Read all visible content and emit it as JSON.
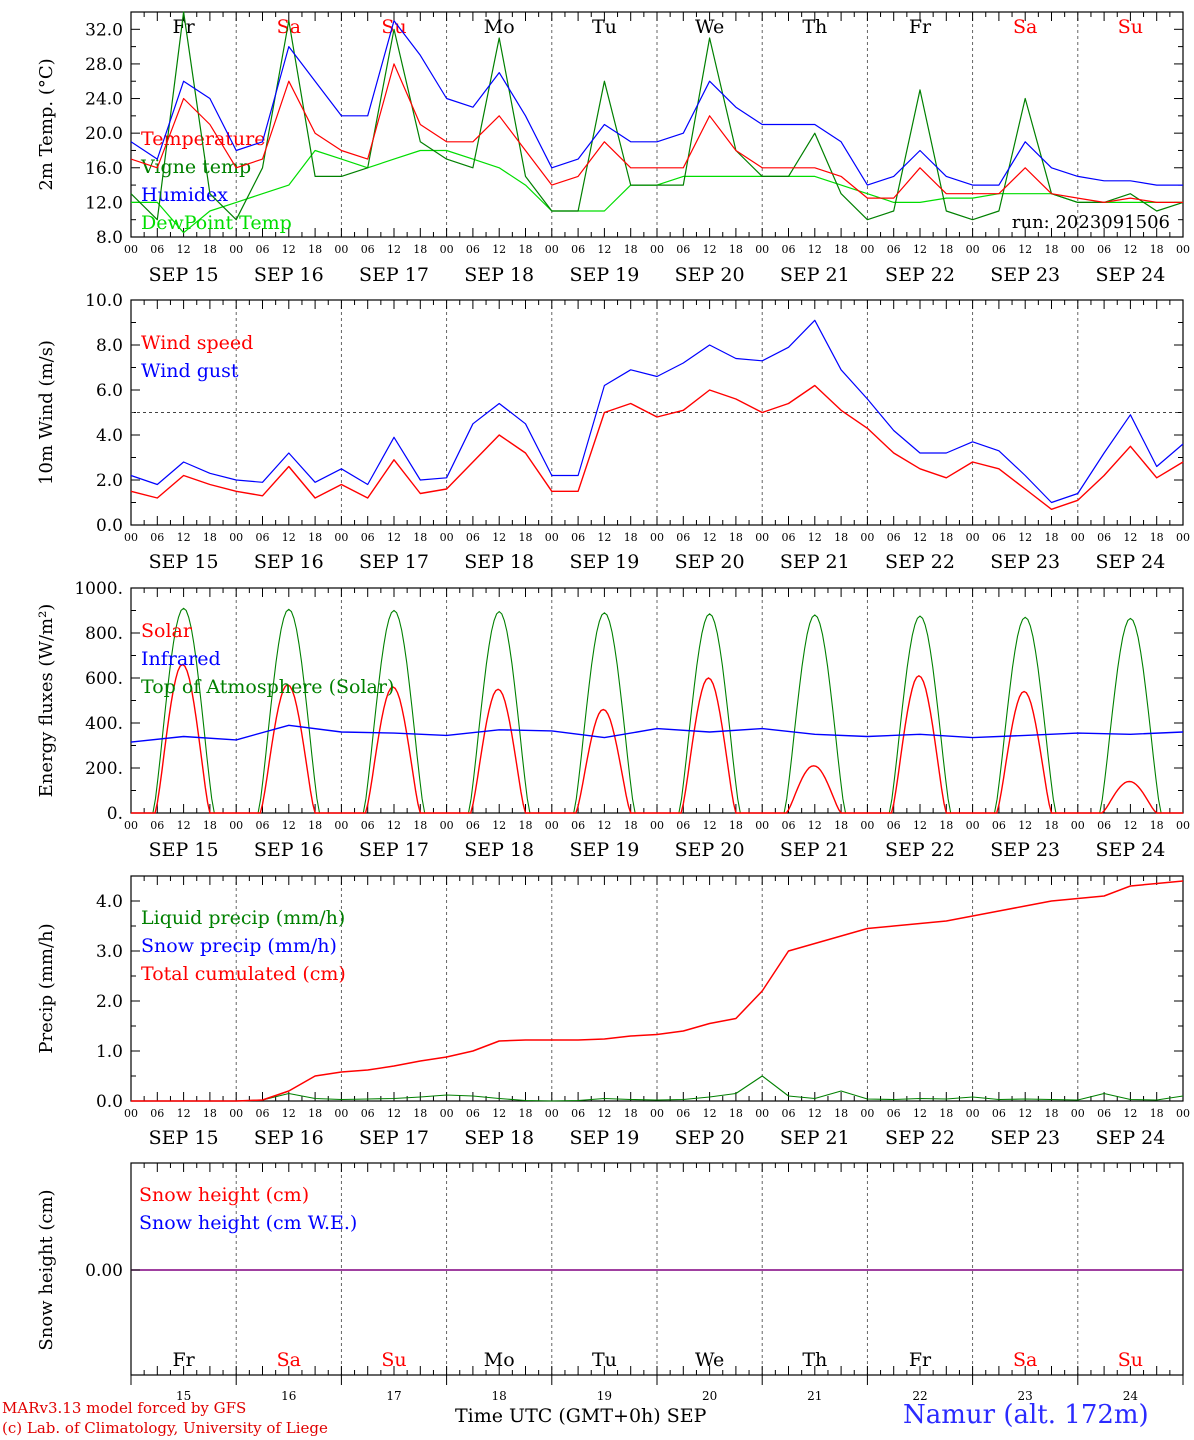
{
  "colors": {
    "temperature": "#ff0000",
    "vigne": "#008000",
    "humidex": "#0000ff",
    "dewpoint": "#00dd00",
    "weekday": "#000000",
    "weekend": "#ff0000",
    "snow_line": "#800080"
  },
  "days": {
    "dates": [
      "SEP 15",
      "SEP 16",
      "SEP 17",
      "SEP 18",
      "SEP 19",
      "SEP 20",
      "SEP 21",
      "SEP 22",
      "SEP 23",
      "SEP 24"
    ],
    "weekdays": [
      "Fr",
      "Sa",
      "Su",
      "Mo",
      "Tu",
      "We",
      "Th",
      "Fr",
      "Sa",
      "Su"
    ],
    "weekend": [
      false,
      true,
      true,
      false,
      false,
      false,
      false,
      false,
      true,
      true
    ],
    "day_numbers": [
      "15",
      "16",
      "17",
      "18",
      "19",
      "20",
      "21",
      "22",
      "23",
      "24"
    ],
    "hour_ticks": [
      "00",
      "06",
      "12",
      "18"
    ],
    "end_tick": "00"
  },
  "chart_data": [
    {
      "type": "line",
      "ylabel": "2m Temp. (°C)",
      "ylim": [
        8,
        34
      ],
      "yticks": [
        "8.0",
        "12.0",
        "16.0",
        "20.0",
        "24.0",
        "28.0",
        "32.0"
      ],
      "annotation": "run: 2023091506",
      "legend": [
        "Temperature",
        "Vigne temp",
        "Humidex",
        "DewPoint Temp"
      ],
      "x_hours": [
        0,
        6,
        12,
        18,
        24,
        30,
        36,
        42,
        48,
        54,
        60,
        66,
        72,
        78,
        84,
        90,
        96,
        102,
        108,
        114,
        120,
        126,
        132,
        138,
        144,
        150,
        156,
        162,
        168,
        174,
        180,
        186,
        192,
        198,
        204,
        210,
        216,
        222,
        228,
        234,
        240
      ],
      "series": [
        {
          "name": "Temperature",
          "values": [
            17,
            16,
            24,
            21,
            16,
            17,
            26,
            20,
            18,
            17,
            28,
            21,
            19,
            19,
            22,
            18,
            14,
            15,
            19,
            16,
            16,
            16,
            22,
            18,
            16,
            16,
            16,
            15,
            12.5,
            12.5,
            16,
            13,
            13,
            13,
            16,
            13,
            12.5,
            12,
            12.5,
            12,
            12
          ]
        },
        {
          "name": "Vigne temp",
          "values": [
            13,
            10,
            34,
            13,
            10,
            16,
            33,
            15,
            15,
            16,
            32,
            19,
            17,
            16,
            31,
            15,
            11,
            11,
            26,
            14,
            14,
            14,
            31,
            18,
            15,
            15,
            20,
            13,
            10,
            11,
            25,
            11,
            10,
            11,
            24,
            13,
            12,
            12,
            13,
            11,
            12
          ]
        },
        {
          "name": "Humidex",
          "values": [
            19,
            17,
            26,
            24,
            18,
            19,
            30,
            26,
            22,
            22,
            33,
            29,
            24,
            23,
            27,
            22,
            16,
            17,
            21,
            19,
            19,
            20,
            26,
            23,
            21,
            21,
            21,
            19,
            14,
            15,
            18,
            15,
            14,
            14,
            19,
            16,
            15,
            14.5,
            14.5,
            14,
            14
          ]
        },
        {
          "name": "DewPoint Temp",
          "values": [
            12,
            12,
            8.5,
            11,
            12,
            13,
            14,
            18,
            17,
            16,
            17,
            18,
            18,
            17,
            16,
            14,
            11,
            11,
            11,
            14,
            14,
            15,
            15,
            15,
            15,
            15,
            15,
            14,
            13,
            12,
            12,
            12.5,
            12.5,
            13,
            13,
            13,
            12,
            12,
            12,
            12,
            12
          ]
        }
      ]
    },
    {
      "type": "line",
      "ylabel": "10m Wind (m/s)",
      "ylim": [
        0,
        10
      ],
      "yticks": [
        "0.0",
        "2.0",
        "4.0",
        "6.0",
        "8.0",
        "10.0"
      ],
      "reference_line": 5,
      "legend": [
        "Wind speed",
        "Wind gust"
      ],
      "x_hours": [
        0,
        6,
        12,
        18,
        24,
        30,
        36,
        42,
        48,
        54,
        60,
        66,
        72,
        78,
        84,
        90,
        96,
        102,
        108,
        114,
        120,
        126,
        132,
        138,
        144,
        150,
        156,
        162,
        168,
        174,
        180,
        186,
        192,
        198,
        204,
        210,
        216,
        222,
        228,
        234,
        240
      ],
      "series": [
        {
          "name": "Wind speed",
          "values": [
            1.5,
            1.2,
            2.2,
            1.8,
            1.5,
            1.3,
            2.6,
            1.2,
            1.8,
            1.2,
            2.9,
            1.4,
            1.6,
            2.8,
            4.0,
            3.2,
            1.5,
            1.5,
            5.0,
            5.4,
            4.8,
            5.1,
            6.0,
            5.6,
            5.0,
            5.4,
            6.2,
            5.1,
            4.3,
            3.2,
            2.5,
            2.1,
            2.8,
            2.5,
            1.6,
            0.7,
            1.1,
            2.2,
            3.5,
            2.1,
            2.8
          ]
        },
        {
          "name": "Wind gust",
          "values": [
            2.2,
            1.8,
            2.8,
            2.3,
            2.0,
            1.9,
            3.2,
            1.9,
            2.5,
            1.8,
            3.9,
            2.0,
            2.1,
            4.5,
            5.4,
            4.5,
            2.2,
            2.2,
            6.2,
            6.9,
            6.6,
            7.2,
            8.0,
            7.4,
            7.3,
            7.9,
            9.1,
            6.9,
            5.6,
            4.2,
            3.2,
            3.2,
            3.7,
            3.3,
            2.2,
            1.0,
            1.4,
            3.2,
            4.9,
            2.6,
            3.6
          ]
        }
      ]
    },
    {
      "type": "line",
      "ylabel": "Energy fluxes (W/m²)",
      "ylim": [
        0,
        1000
      ],
      "yticks": [
        "0.",
        "200.",
        "400.",
        "600.",
        "800.",
        "1000."
      ],
      "legend": [
        "Solar",
        "Infrared",
        "Top of Atmosphere (Solar)"
      ],
      "solar_daily_peaks": [
        660,
        570,
        560,
        550,
        460,
        600,
        210,
        610,
        540,
        140
      ],
      "toa_daily_peaks": [
        910,
        905,
        900,
        895,
        890,
        885,
        880,
        875,
        870,
        865
      ],
      "infrared_values": [
        315,
        340,
        325,
        390,
        360,
        355,
        345,
        370,
        365,
        335,
        375,
        360,
        375,
        350,
        340,
        350,
        335,
        345,
        355,
        350,
        360
      ],
      "series": [
        {
          "name": "Solar",
          "peaks": [
            660,
            570,
            560,
            550,
            460,
            600,
            210,
            610,
            540,
            140
          ]
        },
        {
          "name": "Infrared",
          "values": [
            315,
            340,
            325,
            390,
            360,
            355,
            345,
            370,
            365,
            335,
            375,
            360,
            375,
            350,
            340,
            350,
            335,
            345,
            355,
            350,
            360
          ]
        },
        {
          "name": "Top of Atmosphere (Solar)",
          "peaks": [
            910,
            905,
            900,
            895,
            890,
            885,
            880,
            875,
            870,
            865
          ]
        }
      ]
    },
    {
      "type": "line",
      "ylabel": "Precip (mm/h)",
      "ylim": [
        0,
        4.5
      ],
      "yticks": [
        "0.0",
        "1.0",
        "2.0",
        "3.0",
        "4.0"
      ],
      "legend": [
        "Liquid precip (mm/h)",
        "Snow precip (mm/h)",
        "Total cumulated (cm)"
      ],
      "x_hours": [
        0,
        24,
        30,
        36,
        42,
        48,
        54,
        60,
        66,
        72,
        78,
        84,
        90,
        96,
        102,
        108,
        114,
        120,
        126,
        132,
        138,
        144,
        150,
        156,
        162,
        168,
        174,
        180,
        186,
        192,
        198,
        204,
        210,
        216,
        222,
        228,
        234,
        240
      ],
      "series": [
        {
          "name": "Total cumulated (cm)",
          "values": [
            0,
            0,
            0.02,
            0.2,
            0.5,
            0.58,
            0.62,
            0.7,
            0.8,
            0.88,
            1.0,
            1.2,
            1.22,
            1.22,
            1.22,
            1.24,
            1.3,
            1.33,
            1.4,
            1.55,
            1.65,
            2.2,
            3.0,
            3.15,
            3.3,
            3.45,
            3.5,
            3.55,
            3.6,
            3.7,
            3.8,
            3.9,
            4.0,
            4.05,
            4.1,
            4.3,
            4.35,
            4.4
          ]
        },
        {
          "name": "Liquid precip (mm/h)",
          "values": [
            0,
            0,
            0.02,
            0.15,
            0.05,
            0.03,
            0.04,
            0.05,
            0.08,
            0.12,
            0.1,
            0.05,
            0.01,
            0.0,
            0.01,
            0.05,
            0.03,
            0.02,
            0.03,
            0.08,
            0.15,
            0.5,
            0.1,
            0.05,
            0.2,
            0.04,
            0.03,
            0.05,
            0.04,
            0.08,
            0.03,
            0.04,
            0.03,
            0.02,
            0.15,
            0.03,
            0.02,
            0.1
          ]
        },
        {
          "name": "Snow precip (mm/h)",
          "values": [
            0,
            0
          ]
        }
      ]
    },
    {
      "type": "line",
      "ylabel": "Snow height (cm)",
      "yticks": [
        "0.00"
      ],
      "legend": [
        "Snow height (cm)",
        "Snow height (cm W.E.)"
      ],
      "series": [
        {
          "name": "Snow height (cm)",
          "values": [
            0,
            0
          ]
        },
        {
          "name": "Snow height (cm W.E.)",
          "values": [
            0,
            0
          ]
        }
      ]
    }
  ],
  "footer": {
    "credit_line1": "MARv3.13 model forced by GFS",
    "credit_line2": "(c) Lab. of Climatology, University of Liege",
    "x_title": "Time UTC (GMT+0h) SEP",
    "location": "Namur (alt. 172m)"
  }
}
